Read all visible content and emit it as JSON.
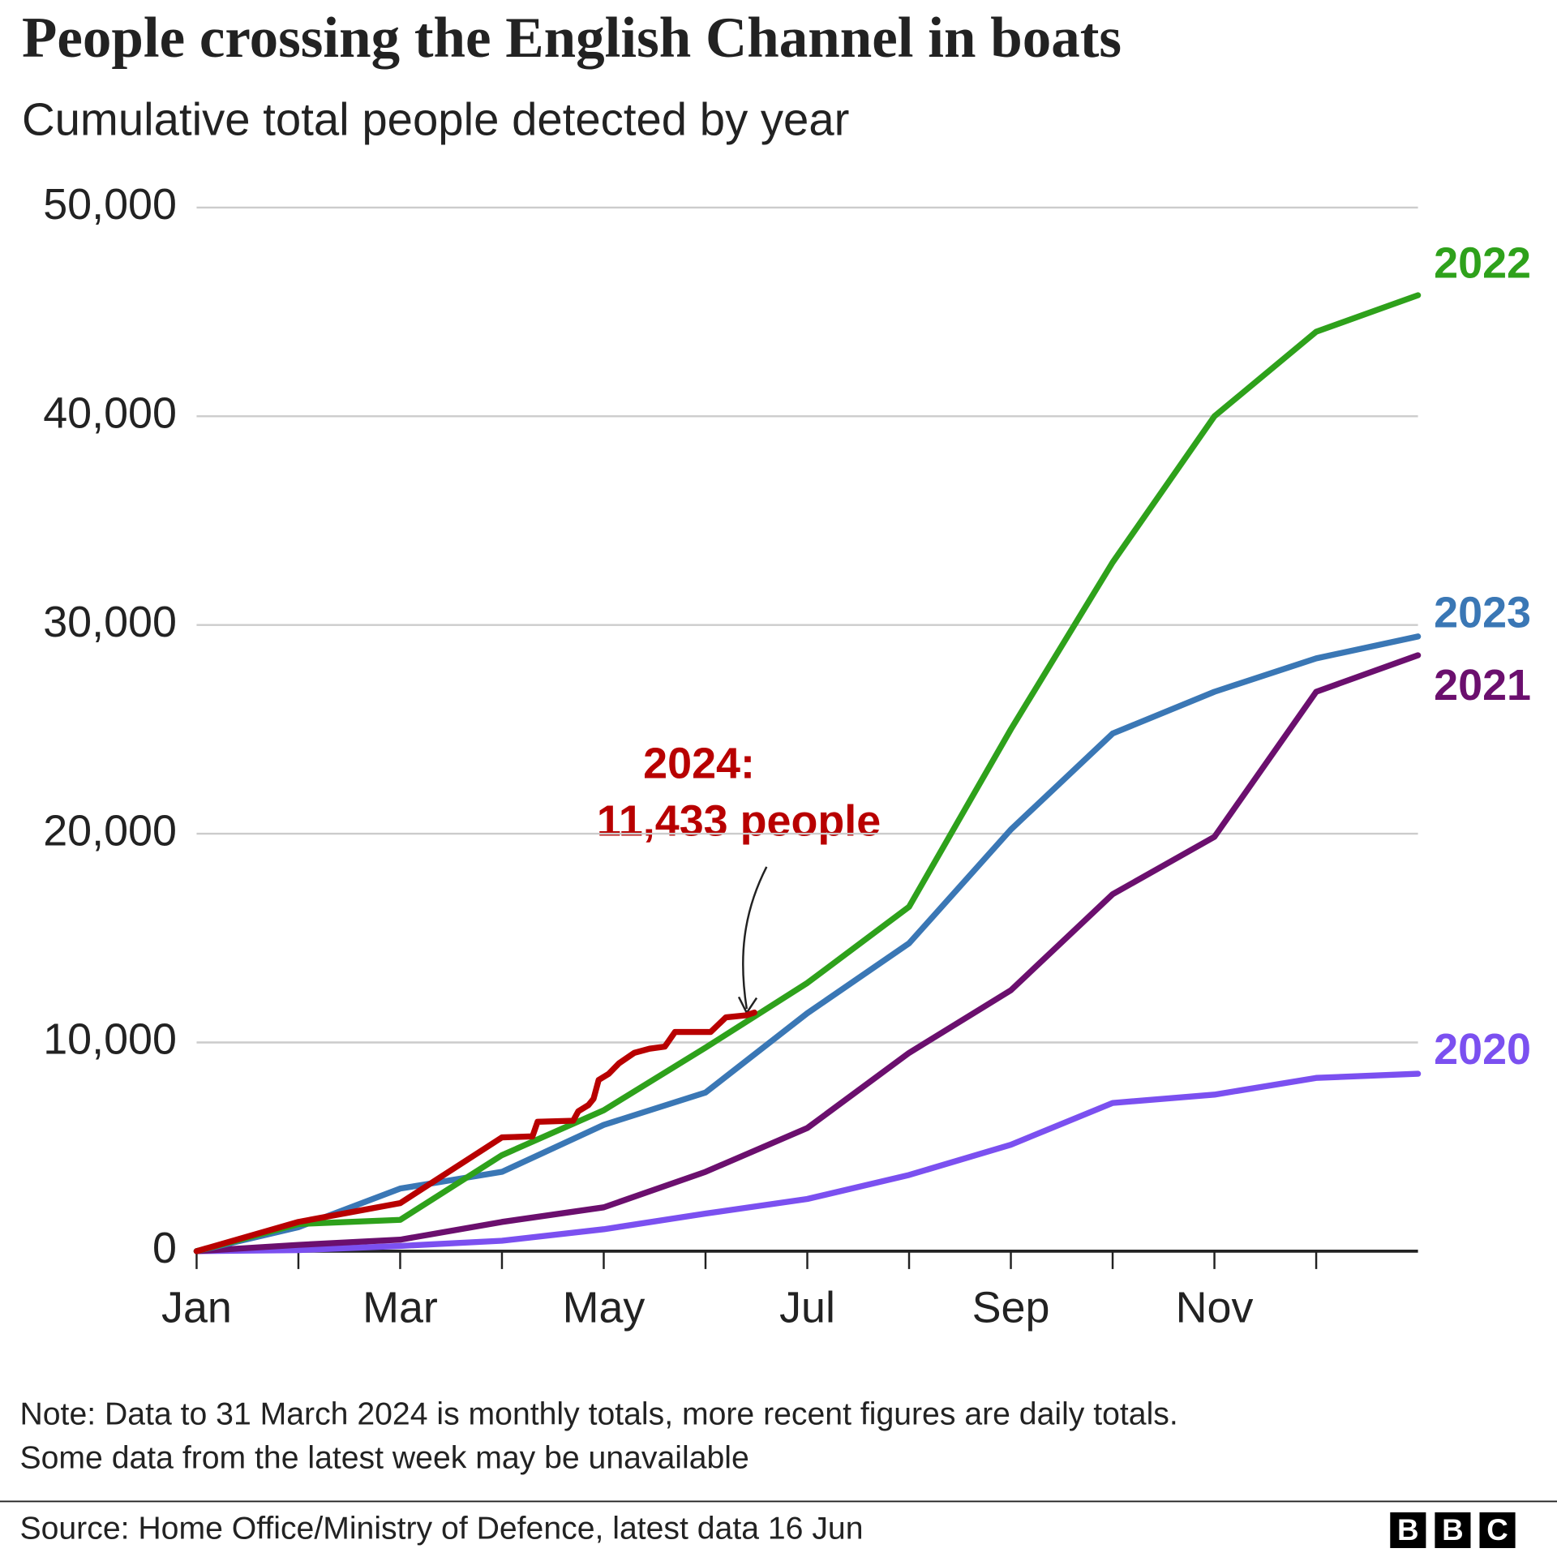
{
  "chart_data": {
    "type": "line",
    "title": "People crossing the English Channel in boats",
    "subtitle": "Cumulative total people detected by year",
    "xlim": [
      0,
      12
    ],
    "xticks": [
      {
        "value": 0,
        "label": "Jan"
      },
      {
        "value": 2,
        "label": "Mar"
      },
      {
        "value": 4,
        "label": "May"
      },
      {
        "value": 6,
        "label": "Jul"
      },
      {
        "value": 8,
        "label": "Sep"
      },
      {
        "value": 10,
        "label": "Nov"
      }
    ],
    "xminorticks": [
      1,
      3,
      5,
      7,
      9,
      11
    ],
    "ylim": [
      0,
      50000
    ],
    "yticks": [
      {
        "value": 0,
        "label": "0"
      },
      {
        "value": 10000,
        "label": "10,000"
      },
      {
        "value": 20000,
        "label": "20,000"
      },
      {
        "value": 30000,
        "label": "30,000"
      },
      {
        "value": 40000,
        "label": "40,000"
      },
      {
        "value": 50000,
        "label": "50,000"
      }
    ],
    "grid": true,
    "series": [
      {
        "name": "2020",
        "color": "#7b50f0",
        "x": [
          0,
          1,
          2,
          3,
          4,
          5,
          6,
          7,
          8,
          9,
          10,
          11,
          12
        ],
        "values": [
          0,
          50,
          250,
          500,
          1050,
          1800,
          2500,
          3650,
          5100,
          7100,
          7500,
          8300,
          8500
        ]
      },
      {
        "name": "2021",
        "color": "#6b0f6e",
        "x": [
          0,
          1,
          2,
          3,
          4,
          5,
          6,
          7,
          8,
          9,
          10,
          11,
          12
        ],
        "values": [
          0,
          300,
          550,
          1400,
          2100,
          3800,
          5900,
          9500,
          12500,
          17100,
          19850,
          26800,
          28550
        ]
      },
      {
        "name": "2023",
        "color": "#3a77b5",
        "x": [
          0,
          1,
          2,
          3,
          4,
          5,
          6,
          7,
          8,
          9,
          10,
          11,
          12
        ],
        "values": [
          0,
          1150,
          3000,
          3800,
          6050,
          7600,
          11400,
          14750,
          20200,
          24800,
          26800,
          28400,
          29450
        ]
      },
      {
        "name": "2022",
        "color": "#2ea11b",
        "x": [
          0,
          1,
          2,
          3,
          4,
          5,
          6,
          7,
          8,
          9,
          10,
          11,
          12
        ],
        "values": [
          0,
          1300,
          1500,
          4600,
          6750,
          9750,
          12850,
          16500,
          25000,
          33000,
          40000,
          44050,
          45800
        ]
      },
      {
        "color": "#b80000",
        "x": [
          0,
          1,
          2,
          3,
          3.3,
          3.35,
          3.7,
          3.75,
          3.85,
          3.9,
          3.95,
          4.05,
          4.15,
          4.3,
          4.45,
          4.6,
          4.7,
          5.05,
          5.2,
          5.4,
          5.48
        ],
        "values": [
          0,
          1400,
          2300,
          5450,
          5500,
          6200,
          6250,
          6700,
          7000,
          7300,
          8200,
          8500,
          9000,
          9500,
          9700,
          9800,
          10500,
          10500,
          11200,
          11300,
          11433
        ]
      }
    ],
    "annotation": [
      "2024:",
      "11,433 people"
    ],
    "note": [
      "Note: Data to 31 March 2024 is monthly totals, more recent figures are daily totals.",
      "Some data from the latest week may be unavailable"
    ],
    "source": "Source: Home Office/Ministry of Defence, latest data 16 Jun",
    "logo": [
      "B",
      "B",
      "C"
    ]
  }
}
